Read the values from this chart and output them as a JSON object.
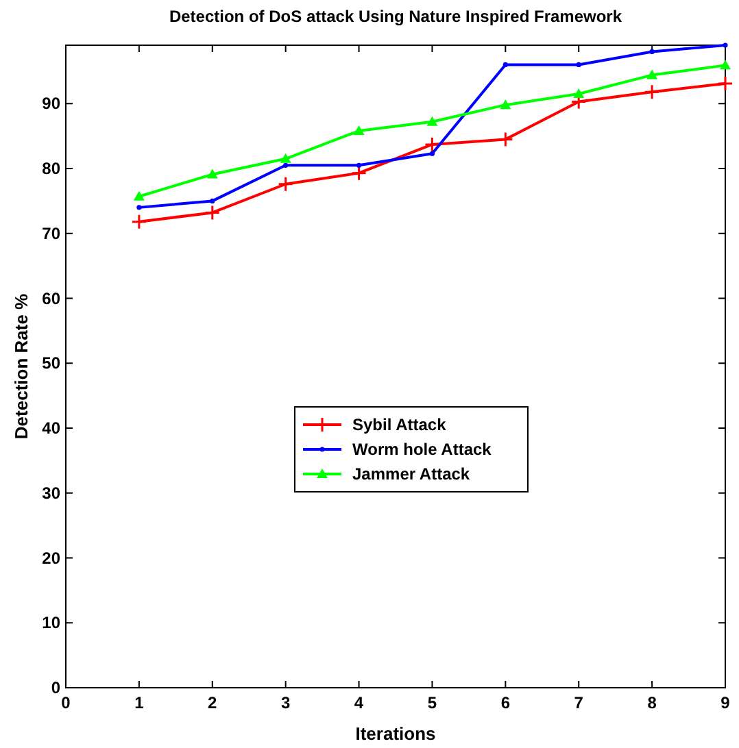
{
  "chart_data": {
    "type": "line",
    "title": "Detection of DoS attack Using Nature Inspired Framework",
    "xlabel": "Iterations",
    "ylabel": "Detection Rate %",
    "x": [
      1,
      2,
      3,
      4,
      5,
      6,
      7,
      8,
      9
    ],
    "xlim": [
      0,
      9
    ],
    "xticks": [
      0,
      1,
      2,
      3,
      4,
      5,
      6,
      7,
      8,
      9
    ],
    "ylim": [
      0,
      99
    ],
    "yticks": [
      0,
      10,
      20,
      30,
      40,
      50,
      60,
      70,
      80,
      90
    ],
    "series": [
      {
        "name": "Sybil Attack",
        "color": "#ff0000",
        "marker": "cross",
        "values": [
          71.8,
          73.2,
          77.6,
          79.3,
          83.7,
          84.5,
          90.3,
          91.8,
          93.1
        ]
      },
      {
        "name": "Worm hole Attack",
        "color": "#0000ff",
        "marker": "circle",
        "values": [
          74,
          75,
          80.5,
          80.5,
          82.3,
          96,
          96,
          98,
          99
        ]
      },
      {
        "name": "Jammer Attack",
        "color": "#00ff00",
        "marker": "triangle",
        "values": [
          75.7,
          79.1,
          81.5,
          85.8,
          87.2,
          89.8,
          91.5,
          94.4,
          95.9
        ]
      }
    ],
    "legend": "center",
    "grid": false
  }
}
